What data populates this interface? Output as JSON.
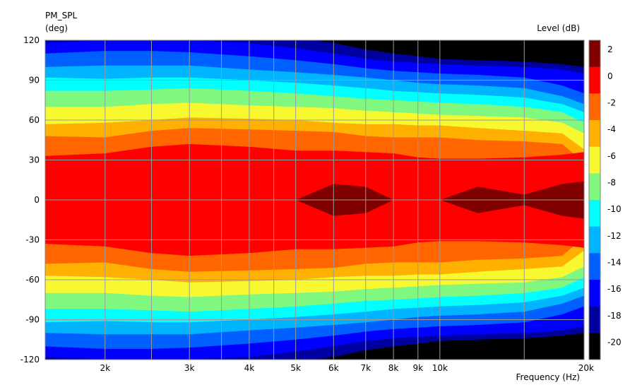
{
  "chart_data": {
    "type": "heatmap",
    "title": "PM_SPL",
    "ylabel": "(deg)",
    "xlabel": "Frequency  (Hz)",
    "colorbar_label": "Level  (dB)",
    "x_scale": "log",
    "xlim": [
      1500,
      20000
    ],
    "ylim": [
      -120,
      120
    ],
    "x_ticks": [
      {
        "value": 2000,
        "label": "2k"
      },
      {
        "value": 3000,
        "label": "3k"
      },
      {
        "value": 4000,
        "label": "4k"
      },
      {
        "value": 5000,
        "label": "5k"
      },
      {
        "value": 6000,
        "label": "6k"
      },
      {
        "value": 7000,
        "label": "7k"
      },
      {
        "value": 8000,
        "label": "8k"
      },
      {
        "value": 9000,
        "label": "9k"
      },
      {
        "value": 10000,
        "label": "10k"
      },
      {
        "value": 20000,
        "label": "20k"
      }
    ],
    "x_minor_gridlines": [
      1500,
      2500,
      3500,
      4500,
      15000
    ],
    "y_ticks": [
      120,
      90,
      60,
      30,
      0,
      -30,
      -60,
      -90,
      -120
    ],
    "y_gridlines": [
      120,
      90,
      60,
      30,
      0,
      -30,
      -60,
      -90,
      -120
    ],
    "colorbar_ticks": [
      2,
      0,
      -2,
      -4,
      -6,
      -8,
      -10,
      -12,
      -14,
      -16,
      -18,
      -20
    ],
    "levels": [
      {
        "min": 0,
        "color": "#800000"
      },
      {
        "min": -2,
        "color": "#ff0000"
      },
      {
        "min": -4,
        "color": "#ff6600"
      },
      {
        "min": -6,
        "color": "#ffb000"
      },
      {
        "min": -8,
        "color": "#f8f830"
      },
      {
        "min": -10,
        "color": "#80f880"
      },
      {
        "min": -12,
        "color": "#00ffff"
      },
      {
        "min": -14,
        "color": "#00b4ff"
      },
      {
        "min": -16,
        "color": "#0060ff"
      },
      {
        "min": -18,
        "color": "#0000ff"
      },
      {
        "min": -20,
        "color": "#0000a0"
      },
      {
        "min": -99,
        "color": "#000000"
      }
    ],
    "contour_angles": {
      "freqs": [
        1500,
        2000,
        2500,
        3000,
        4000,
        5000,
        6000,
        7000,
        8000,
        9000,
        10000,
        12000,
        15000,
        18000,
        20000
      ],
      "m0": [
        0,
        0,
        0,
        0,
        0,
        0,
        12,
        10,
        0,
        0,
        0,
        10,
        4,
        12,
        14
      ],
      "m2": [
        33,
        35,
        40,
        42,
        40,
        37,
        37,
        36,
        35,
        32,
        31,
        31,
        32,
        34,
        36
      ],
      "m4": [
        48,
        47,
        52,
        54,
        53,
        52,
        51,
        48,
        47,
        47,
        47,
        45,
        44,
        42,
        28
      ],
      "m6": [
        57,
        58,
        60,
        62,
        61,
        60,
        58,
        57,
        57,
        56,
        56,
        54,
        52,
        50,
        38
      ],
      "m8": [
        70,
        70,
        72,
        73,
        71,
        70,
        69,
        67,
        66,
        65,
        64,
        63,
        62,
        58,
        50
      ],
      "m10": [
        82,
        82,
        83,
        84,
        82,
        80,
        78,
        76,
        75,
        74,
        73,
        72,
        70,
        66,
        58
      ],
      "m12": [
        92,
        91,
        92,
        92,
        90,
        88,
        86,
        84,
        82,
        81,
        80,
        79,
        77,
        72,
        66
      ],
      "m14": [
        100,
        101,
        101,
        101,
        98,
        96,
        94,
        92,
        90,
        88,
        87,
        86,
        84,
        78,
        72
      ],
      "m16": [
        110,
        112,
        112,
        111,
        108,
        105,
        102,
        99,
        97,
        96,
        95,
        94,
        92,
        86,
        80
      ],
      "m18": [
        118,
        120,
        121,
        120,
        118,
        114,
        110,
        106,
        104,
        103,
        102,
        101,
        100,
        98,
        95
      ],
      "m20": [
        125,
        126,
        126,
        126,
        125,
        122,
        118,
        113,
        110,
        108,
        106,
        105,
        104,
        102,
        100
      ]
    }
  }
}
